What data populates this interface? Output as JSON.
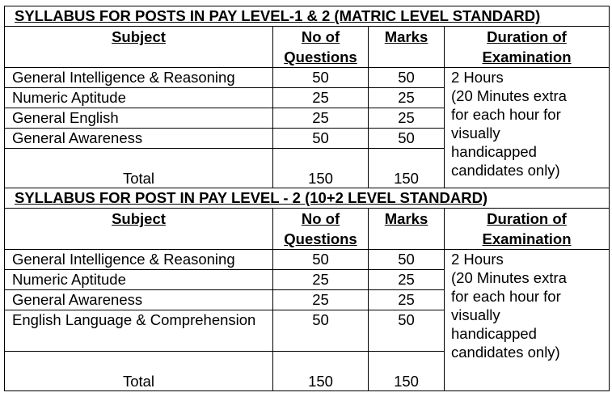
{
  "sections": [
    {
      "title": "SYLLABUS FOR POSTS IN PAY LEVEL-1 & 2 (MATRIC LEVEL STANDARD)",
      "headers": {
        "subject": "Subject",
        "questions_1": "No of",
        "questions_2": "Questions",
        "marks": "Marks",
        "duration_1": "Duration of",
        "duration_2": "Examination"
      },
      "rows": [
        {
          "subject": "General Intelligence & Reasoning",
          "questions": "50",
          "marks": "50"
        },
        {
          "subject": "Numeric Aptitude",
          "questions": "25",
          "marks": "25"
        },
        {
          "subject": "General English",
          "questions": "25",
          "marks": "25"
        },
        {
          "subject": "General Awareness",
          "questions": "50",
          "marks": "50"
        }
      ],
      "total": {
        "label": "Total",
        "questions": "150",
        "marks": "150"
      },
      "duration_lines": [
        "2 Hours",
        "(20 Minutes extra",
        "for each hour for",
        "visually",
        "handicapped",
        "candidates only)"
      ]
    },
    {
      "title": "SYLLABUS FOR POST IN PAY LEVEL - 2 (10+2 LEVEL STANDARD)",
      "headers": {
        "subject": "Subject",
        "questions_1": "No of",
        "questions_2": "Questions",
        "marks": "Marks",
        "duration_1": "Duration of",
        "duration_2": "Examination"
      },
      "rows": [
        {
          "subject": "General Intelligence & Reasoning",
          "questions": "50",
          "marks": "50"
        },
        {
          "subject": "Numeric Aptitude",
          "questions": "25",
          "marks": "25"
        },
        {
          "subject": "General Awareness",
          "questions": "25",
          "marks": "25"
        },
        {
          "subject": "English Language & Comprehension",
          "questions": "50",
          "marks": "50"
        }
      ],
      "total": {
        "label": "Total",
        "questions": "150",
        "marks": "150"
      },
      "duration_lines": [
        "2 Hours",
        "(20 Minutes extra",
        "for each hour for",
        "visually",
        "handicapped",
        "candidates only)"
      ]
    }
  ]
}
